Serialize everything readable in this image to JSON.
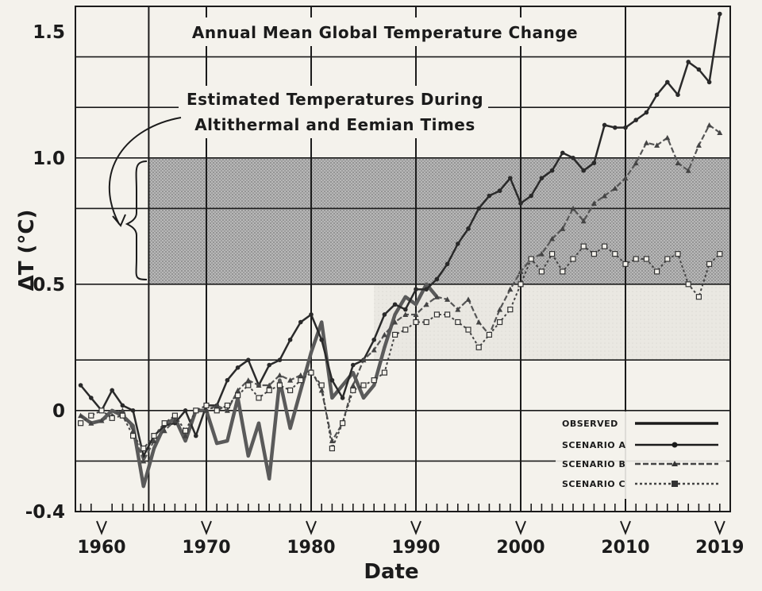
{
  "colors": {
    "paper": "#f4f2ec",
    "ink": "#1b1b1b",
    "observed": "#3a3a3a",
    "scenario_a": "#222222",
    "scenario_b": "#555555",
    "scenario_c": "#444444",
    "band": "#9a9a9a"
  },
  "chart_data": {
    "type": "line",
    "title": "Annual Mean Global Temperature Change",
    "xlabel": "Date",
    "ylabel": "ΔT (°C)",
    "xlim": [
      1957.5,
      2020
    ],
    "ylim": [
      -0.4,
      1.6
    ],
    "x_tick_labels": [
      "1960",
      "1970",
      "1980",
      "1990",
      "2000",
      "2010",
      "2019"
    ],
    "x_tick_values": [
      1960,
      1970,
      1980,
      1990,
      2000,
      2010,
      2019
    ],
    "y_tick_labels": [
      "-0.4",
      "0",
      "0.5",
      "1.0",
      "1.5"
    ],
    "y_tick_values": [
      -0.4,
      0,
      0.5,
      1.0,
      1.5
    ],
    "grid": true,
    "legend_position": "bottom-right",
    "annotation": {
      "text_line1": "Estimated Temperatures During",
      "text_line2": "Altithermal and Eemian Times",
      "band_range": [
        0.5,
        1.0
      ],
      "band_start_year": 1964.5
    },
    "series": [
      {
        "name": "OBSERVED",
        "x": [
          1958,
          1959,
          1960,
          1961,
          1962,
          1963,
          1964,
          1965,
          1966,
          1967,
          1968,
          1969,
          1970,
          1971,
          1972,
          1973,
          1974,
          1975,
          1976,
          1977,
          1978,
          1979,
          1980,
          1981,
          1982,
          1983,
          1984,
          1985,
          1986,
          1987,
          1988,
          1989,
          1990,
          1991,
          1992
        ],
        "values": [
          -0.02,
          -0.05,
          -0.04,
          0.0,
          -0.02,
          -0.06,
          -0.3,
          -0.15,
          -0.06,
          -0.03,
          -0.12,
          0.0,
          0.0,
          -0.13,
          -0.12,
          0.05,
          -0.18,
          -0.05,
          -0.27,
          0.12,
          -0.07,
          0.08,
          0.23,
          0.35,
          0.05,
          0.1,
          0.15,
          0.05,
          0.1,
          0.25,
          0.38,
          0.45,
          0.42,
          0.5,
          0.45
        ]
      },
      {
        "name": "SCENARIO A",
        "x": [
          1958,
          1959,
          1960,
          1961,
          1962,
          1963,
          1964,
          1965,
          1966,
          1967,
          1968,
          1969,
          1970,
          1971,
          1972,
          1973,
          1974,
          1975,
          1976,
          1977,
          1978,
          1979,
          1980,
          1981,
          1982,
          1983,
          1984,
          1985,
          1986,
          1987,
          1988,
          1989,
          1990,
          1991,
          1992,
          1993,
          1994,
          1995,
          1996,
          1997,
          1998,
          1999,
          2000,
          2001,
          2002,
          2003,
          2004,
          2005,
          2006,
          2007,
          2008,
          2009,
          2010,
          2011,
          2012,
          2013,
          2014,
          2015,
          2016,
          2017,
          2018,
          2019
        ],
        "values": [
          0.1,
          0.05,
          0.0,
          0.08,
          0.02,
          0.0,
          -0.18,
          -0.1,
          -0.06,
          -0.05,
          0.0,
          -0.1,
          0.02,
          0.02,
          0.12,
          0.17,
          0.2,
          0.1,
          0.18,
          0.2,
          0.28,
          0.35,
          0.38,
          0.28,
          0.12,
          0.05,
          0.18,
          0.2,
          0.28,
          0.38,
          0.42,
          0.4,
          0.48,
          0.48,
          0.52,
          0.58,
          0.66,
          0.72,
          0.8,
          0.85,
          0.87,
          0.92,
          0.82,
          0.85,
          0.92,
          0.95,
          1.02,
          1.0,
          0.95,
          0.98,
          1.13,
          1.12,
          1.12,
          1.15,
          1.18,
          1.25,
          1.3,
          1.25,
          1.38,
          1.35,
          1.3,
          1.57
        ]
      },
      {
        "name": "SCENARIO B",
        "x": [
          1958,
          1959,
          1960,
          1961,
          1962,
          1963,
          1964,
          1965,
          1966,
          1967,
          1968,
          1969,
          1970,
          1971,
          1972,
          1973,
          1974,
          1975,
          1976,
          1977,
          1978,
          1979,
          1980,
          1981,
          1982,
          1983,
          1984,
          1985,
          1986,
          1987,
          1988,
          1989,
          1990,
          1991,
          1992,
          1993,
          1994,
          1995,
          1996,
          1997,
          1998,
          1999,
          2000,
          2001,
          2002,
          2003,
          2004,
          2005,
          2006,
          2007,
          2008,
          2009,
          2010,
          2011,
          2012,
          2013,
          2014,
          2015,
          2016,
          2017,
          2018,
          2019
        ],
        "values": [
          -0.02,
          -0.05,
          -0.04,
          -0.02,
          0.0,
          -0.08,
          -0.2,
          -0.12,
          -0.08,
          -0.04,
          -0.1,
          0.0,
          0.0,
          0.02,
          0.0,
          0.08,
          0.12,
          0.1,
          0.1,
          0.14,
          0.12,
          0.14,
          0.16,
          0.08,
          -0.12,
          -0.05,
          0.1,
          0.2,
          0.24,
          0.3,
          0.35,
          0.38,
          0.38,
          0.42,
          0.45,
          0.44,
          0.4,
          0.44,
          0.35,
          0.3,
          0.4,
          0.48,
          0.55,
          0.6,
          0.62,
          0.68,
          0.72,
          0.8,
          0.75,
          0.82,
          0.85,
          0.88,
          0.92,
          0.98,
          1.06,
          1.05,
          1.08,
          0.98,
          0.95,
          1.05,
          1.13,
          1.1
        ]
      },
      {
        "name": "SCENARIO C",
        "x": [
          1958,
          1959,
          1960,
          1961,
          1962,
          1963,
          1964,
          1965,
          1966,
          1967,
          1968,
          1969,
          1970,
          1971,
          1972,
          1973,
          1974,
          1975,
          1976,
          1977,
          1978,
          1979,
          1980,
          1981,
          1982,
          1983,
          1984,
          1985,
          1986,
          1987,
          1988,
          1989,
          1990,
          1991,
          1992,
          1993,
          1994,
          1995,
          1996,
          1997,
          1998,
          1999,
          2000,
          2001,
          2002,
          2003,
          2004,
          2005,
          2006,
          2007,
          2008,
          2009,
          2010,
          2011,
          2012,
          2013,
          2014,
          2015,
          2016,
          2017,
          2018,
          2019
        ],
        "values": [
          -0.05,
          -0.02,
          0.0,
          -0.03,
          -0.02,
          -0.1,
          -0.15,
          -0.1,
          -0.05,
          -0.02,
          -0.08,
          0.0,
          0.02,
          0.0,
          0.02,
          0.06,
          0.1,
          0.05,
          0.08,
          0.1,
          0.08,
          0.12,
          0.15,
          0.1,
          -0.15,
          -0.05,
          0.08,
          0.1,
          0.12,
          0.15,
          0.3,
          0.32,
          0.35,
          0.35,
          0.38,
          0.38,
          0.35,
          0.32,
          0.25,
          0.3,
          0.35,
          0.4,
          0.5,
          0.6,
          0.55,
          0.62,
          0.55,
          0.6,
          0.65,
          0.62,
          0.65,
          0.62,
          0.58,
          0.6,
          0.6,
          0.55,
          0.6,
          0.62,
          0.5,
          0.45,
          0.58,
          0.62
        ]
      }
    ]
  }
}
